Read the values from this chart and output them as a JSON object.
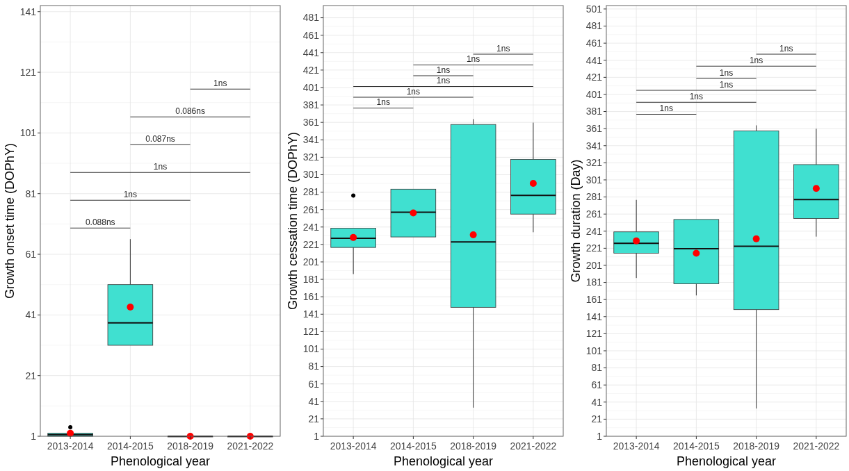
{
  "chart_data": [
    {
      "type": "box",
      "ylabel": "Growth onset time (DOPhY)",
      "xlabel": "Phenological year",
      "categories": [
        "2013-2014",
        "2014-2015",
        "2018-2019",
        "2021-2022"
      ],
      "ylim": [
        1,
        143
      ],
      "yticks": [
        1,
        21,
        41,
        61,
        81,
        101,
        121,
        141
      ],
      "grid": true,
      "series": [
        {
          "color": "#40e0d0",
          "boxes": [
            {
              "low": 1,
              "q1": 1,
              "median": 1.5,
              "q3": 2,
              "high": 2,
              "mean": 2,
              "outliers": [
                4
              ]
            },
            {
              "low": 31,
              "q1": 31,
              "median": 38.4,
              "q3": 51,
              "high": 66,
              "mean": 43.6
            },
            {
              "low": 1,
              "q1": 1,
              "median": 1,
              "q3": 1,
              "high": 1,
              "mean": 1
            },
            {
              "low": 1,
              "q1": 1,
              "median": 1,
              "q3": 1,
              "high": 1,
              "mean": 1
            }
          ]
        }
      ],
      "annotations": [
        "0.088ns",
        "1ns",
        "1ns",
        "0.087ns",
        "0.086ns",
        "1ns"
      ]
    },
    {
      "type": "box",
      "ylabel": "Growth cessation time (DOPhY)",
      "xlabel": "Phenological year",
      "categories": [
        "2013-2014",
        "2014-2015",
        "2018-2019",
        "2021-2022"
      ],
      "ylim": [
        1,
        495
      ],
      "yticks": [
        1,
        21,
        41,
        61,
        81,
        101,
        121,
        141,
        161,
        181,
        201,
        221,
        241,
        261,
        281,
        301,
        321,
        341,
        361,
        381,
        401,
        421,
        441,
        461,
        481
      ],
      "grid": true,
      "series": [
        {
          "color": "#40e0d0",
          "boxes": [
            {
              "low": 187,
              "q1": 217.6,
              "median": 228,
              "q3": 239.6,
              "high": 239.6,
              "mean": 229,
              "outliers": [
                277
              ]
            },
            {
              "low": 229.6,
              "q1": 229.6,
              "median": 257.9,
              "q3": 284.4,
              "high": 284.4,
              "mean": 257.2
            },
            {
              "low": 33.8,
              "q1": 148.9,
              "median": 223.8,
              "q3": 358.6,
              "high": 364.8,
              "mean": 232
            },
            {
              "low": 235,
              "q1": 255.8,
              "median": 277.2,
              "q3": 318.6,
              "high": 360.7,
              "mean": 291
            }
          ]
        }
      ],
      "annotations": [
        "1ns",
        "1ns",
        "1ns",
        "1ns",
        "1ns",
        "1ns"
      ]
    },
    {
      "type": "box",
      "ylabel": "Growth duration (Day)",
      "xlabel": "Phenological year",
      "categories": [
        "2013-2014",
        "2014-2015",
        "2018-2019",
        "2021-2022"
      ],
      "ylim": [
        1,
        505
      ],
      "yticks": [
        1,
        21,
        41,
        61,
        81,
        101,
        121,
        141,
        161,
        181,
        201,
        221,
        241,
        261,
        281,
        301,
        321,
        341,
        361,
        381,
        401,
        421,
        441,
        461,
        481,
        501
      ],
      "grid": true,
      "series": [
        {
          "color": "#40e0d0",
          "boxes": [
            {
              "low": 186.2,
              "q1": 215.2,
              "median": 226.8,
              "q3": 240.2,
              "high": 277.6,
              "mean": 229.6
            },
            {
              "low": 165.8,
              "q1": 179.5,
              "median": 220.5,
              "q3": 254.7,
              "high": 254.7,
              "mean": 215.2
            },
            {
              "low": 33.5,
              "q1": 149.2,
              "median": 223.3,
              "q3": 358.4,
              "high": 364.8,
              "mean": 232.1
            },
            {
              "low": 234.6,
              "q1": 255.8,
              "median": 278,
              "q3": 318.9,
              "high": 360.9,
              "mean": 291
            }
          ]
        }
      ],
      "annotations": [
        "1ns",
        "1ns",
        "1ns",
        "1ns",
        "1ns",
        "1ns"
      ]
    }
  ]
}
